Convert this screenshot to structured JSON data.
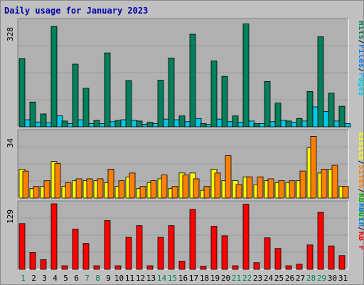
{
  "colors": {
    "background": "#c0c0c0",
    "plot_background": "#b0b0b0",
    "gridline": "#9c9c9c",
    "title": "#0000a8",
    "day_label": "#0000a8",
    "weekend_label": "#00805c",
    "hits": "#00805c",
    "files": "#00c8f0",
    "pages": "#00b8d0",
    "visits": "#ffff00",
    "sites": "#ff8000",
    "kb_out": "#00b000",
    "kb_in": "#0080ff",
    "kb_f": "#ff0000"
  },
  "chart_data": [
    {
      "type": "bar",
      "title": "Daily usage for January 2023",
      "ymax_label": "328",
      "ylim": [
        0,
        328
      ],
      "categories": [
        "1",
        "2",
        "3",
        "4",
        "5",
        "6",
        "7",
        "8",
        "9",
        "10",
        "11",
        "12",
        "13",
        "14",
        "15",
        "16",
        "17",
        "18",
        "19",
        "20",
        "21",
        "22",
        "23",
        "24",
        "25",
        "26",
        "27",
        "28",
        "29",
        "30",
        "31"
      ],
      "weekend_days": [
        "1",
        "7",
        "8",
        "14",
        "15",
        "21",
        "22",
        "28",
        "29"
      ],
      "legend": [
        {
          "text": "Hits",
          "color": "#00805c"
        },
        {
          "text": "/",
          "color": "#000000"
        },
        {
          "text": "Files",
          "color": "#0080ff"
        },
        {
          "text": "/",
          "color": "#000000"
        },
        {
          "text": "Pages",
          "color": "#00c8f0"
        }
      ],
      "series": [
        {
          "name": "Hits",
          "color": "#00805c",
          "values": [
            212,
            77,
            40,
            312,
            18,
            195,
            120,
            20,
            230,
            20,
            144,
            18,
            14,
            145,
            214,
            34,
            288,
            10,
            205,
            157,
            34,
            320,
            10,
            141,
            74,
            18,
            26,
            110,
            280,
            105,
            64
          ]
        },
        {
          "name": "Files",
          "color": "#00c8f0",
          "values": [
            22,
            15,
            12,
            34,
            10,
            22,
            10,
            10,
            16,
            22,
            20,
            8,
            10,
            24,
            22,
            16,
            26,
            8,
            24,
            16,
            14,
            18,
            10,
            16,
            20,
            14,
            18,
            62,
            48,
            18,
            10
          ]
        },
        {
          "name": "Pages",
          "color": "#00b8d0",
          "values": [
            0,
            0,
            0,
            0,
            0,
            0,
            0,
            0,
            0,
            0,
            0,
            0,
            0,
            0,
            0,
            0,
            0,
            0,
            0,
            0,
            0,
            0,
            0,
            0,
            0,
            0,
            0,
            0,
            0,
            0,
            0
          ]
        }
      ]
    },
    {
      "type": "bar",
      "ymax_label": "34",
      "ylim": [
        0,
        34
      ],
      "legend": [
        {
          "text": "Visits",
          "color": "#ffff00"
        },
        {
          "text": "/",
          "color": "#000000"
        },
        {
          "text": "Sites",
          "color": "#ff8000"
        },
        {
          "text": "/",
          "color": "#000000"
        },
        {
          "text": "KB Out",
          "color": "#00b000"
        }
      ],
      "series": [
        {
          "name": "Visits",
          "color": "#ffff00",
          "values": [
            15,
            5,
            6,
            19,
            6,
            9,
            9,
            9,
            8,
            6,
            11,
            5,
            8,
            10,
            5,
            13,
            13,
            4,
            15,
            9,
            9,
            11,
            7,
            9,
            8,
            8,
            9,
            26,
            13,
            15,
            6
          ]
        },
        {
          "name": "Sites",
          "color": "#ff8000",
          "values": [
            14,
            6,
            9,
            18,
            8,
            10,
            10,
            10,
            15,
            9,
            13,
            6,
            9,
            12,
            6,
            12,
            10,
            6,
            13,
            22,
            7,
            11,
            11,
            10,
            9,
            9,
            14,
            32,
            15,
            17,
            6
          ]
        }
      ]
    },
    {
      "type": "bar",
      "ymax_label": "129",
      "ylim": [
        0,
        129
      ],
      "legend": [
        {
          "text": "KB In",
          "color": "#0080ff"
        },
        {
          "text": "/",
          "color": "#000000"
        },
        {
          "text": "KB F",
          "color": "#ff0000"
        }
      ],
      "series": [
        {
          "name": "KB F",
          "color": "#ff0000",
          "values": [
            90,
            33,
            19,
            129,
            7,
            79,
            51,
            7,
            96,
            7,
            63,
            86,
            7,
            63,
            86,
            16,
            118,
            6,
            85,
            66,
            7,
            128,
            13,
            62,
            41,
            7,
            10,
            48,
            112,
            46,
            27
          ]
        }
      ]
    }
  ]
}
